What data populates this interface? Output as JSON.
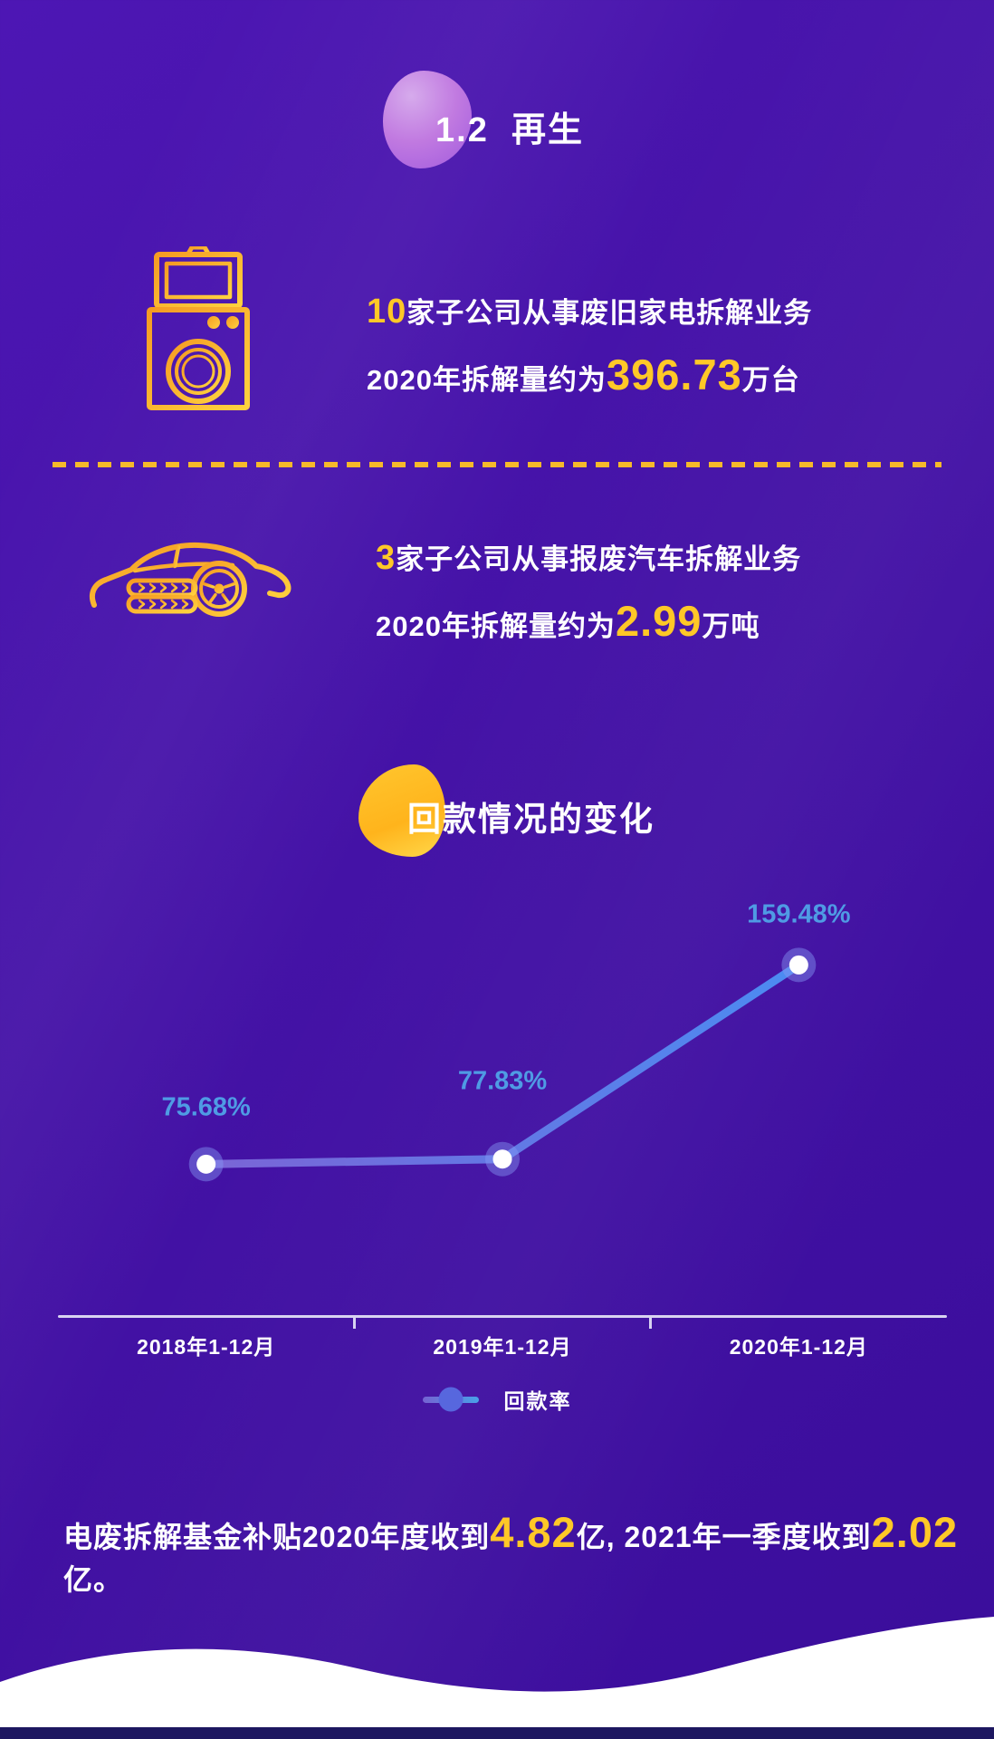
{
  "header": {
    "title_num": "1.2",
    "title_text": "再生"
  },
  "sections": {
    "appliance": {
      "icon": "washing-machine-icon",
      "line1_highlight": "10",
      "line1_rest": "家子公司从事废旧家电拆解业务",
      "line2_prefix": "2020年拆解量约为",
      "line2_value": "396.73",
      "line2_suffix": "万台"
    },
    "vehicle": {
      "icon": "car-icon",
      "line1_highlight": "3",
      "line1_rest": "家子公司从事报废汽车拆解业务",
      "line2_prefix": "2020年拆解量约为",
      "line2_value": "2.99",
      "line2_suffix": "万吨"
    }
  },
  "chart_section": {
    "title": "回款情况的变化"
  },
  "chart_data": {
    "type": "line",
    "title": "回款情况的变化",
    "categories": [
      "2018年1-12月",
      "2019年1-12月",
      "2020年1-12月"
    ],
    "series": [
      {
        "name": "回款率",
        "values": [
          75.68,
          77.83,
          159.48
        ]
      }
    ],
    "point_labels": [
      "75.68%",
      "77.83%",
      "159.48%"
    ],
    "ylim": [
      0,
      200
    ],
    "grid": false,
    "legend_position": "bottom"
  },
  "legend": {
    "label": "回款率"
  },
  "footer_note": {
    "part1": "电废拆解基金补贴2020年度收到",
    "value1": "4.82",
    "part2": "亿, 2021年一季度收到",
    "value2": "2.02",
    "part3": "亿。"
  },
  "colors": {
    "background_top": "#4d16b4",
    "background_bottom": "#3a0d9b",
    "accent_yellow": "#ffc827",
    "icon_gold": "#f7b733",
    "point_label_blue": "#4f9be4",
    "line_gradient_start": "#7b64d6",
    "line_gradient_end": "#4b8cf2",
    "axis_lavender": "#d8d3f1",
    "footer_strip_navy": "#1d1760"
  }
}
